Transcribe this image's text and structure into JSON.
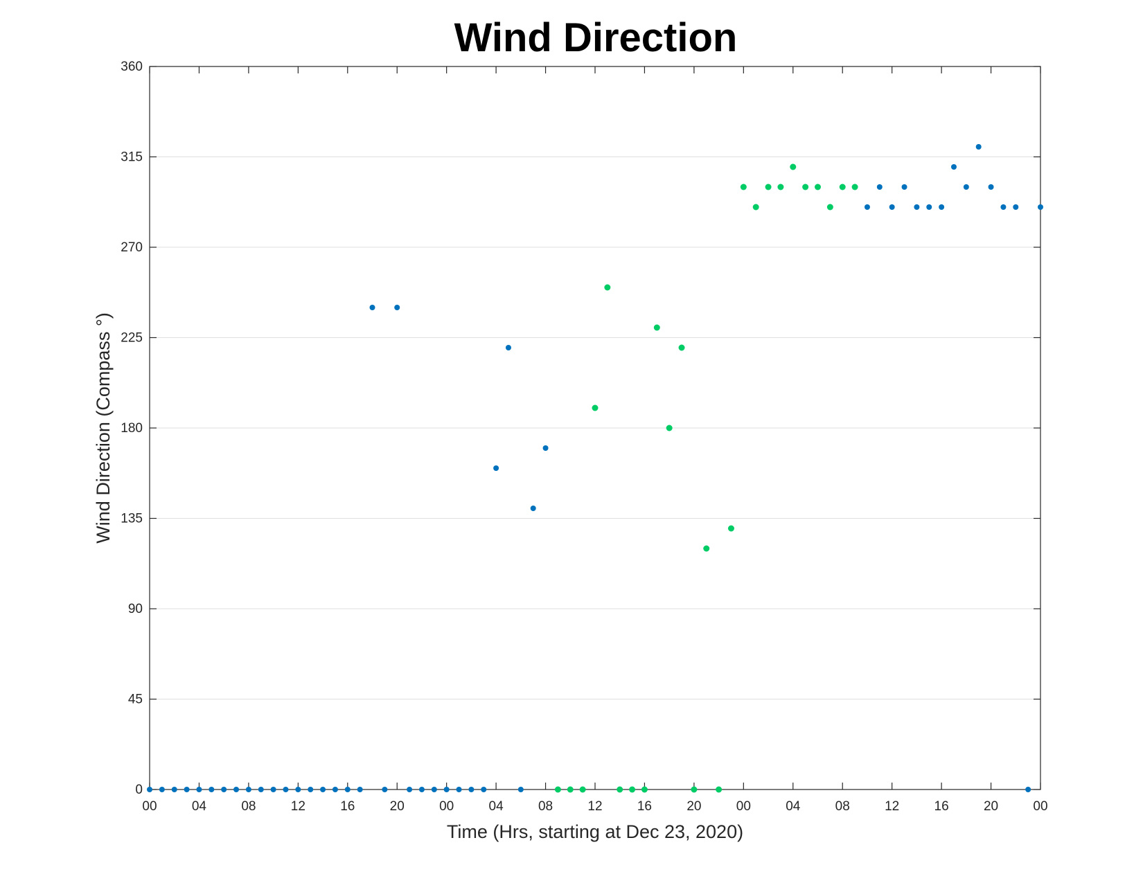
{
  "chart_data": {
    "type": "scatter",
    "title": "Wind Direction",
    "xlabel": "Time (Hrs, starting at Dec 23, 2020)",
    "ylabel": "Wind Direction (Compass °)",
    "x_unit": "hour",
    "xlim": [
      0,
      72
    ],
    "ylim": [
      0,
      360
    ],
    "yticks": [
      0,
      45,
      90,
      135,
      180,
      225,
      270,
      315,
      360
    ],
    "xticks": [
      {
        "x": 0,
        "label": "00"
      },
      {
        "x": 4,
        "label": "04"
      },
      {
        "x": 8,
        "label": "08"
      },
      {
        "x": 12,
        "label": "12"
      },
      {
        "x": 16,
        "label": "16"
      },
      {
        "x": 20,
        "label": "20"
      },
      {
        "x": 24,
        "label": "00"
      },
      {
        "x": 28,
        "label": "04"
      },
      {
        "x": 32,
        "label": "08"
      },
      {
        "x": 36,
        "label": "12"
      },
      {
        "x": 40,
        "label": "16"
      },
      {
        "x": 44,
        "label": "20"
      },
      {
        "x": 48,
        "label": "00"
      },
      {
        "x": 52,
        "label": "04"
      },
      {
        "x": 56,
        "label": "08"
      },
      {
        "x": 60,
        "label": "12"
      },
      {
        "x": 64,
        "label": "16"
      },
      {
        "x": 68,
        "label": "20"
      },
      {
        "x": 72,
        "label": "00"
      }
    ],
    "grid": "y",
    "series": [
      {
        "color": "#0072bd",
        "points": [
          {
            "x": 0,
            "y": 0
          },
          {
            "x": 1,
            "y": 0
          },
          {
            "x": 2,
            "y": 0
          },
          {
            "x": 3,
            "y": 0
          },
          {
            "x": 4,
            "y": 0
          },
          {
            "x": 5,
            "y": 0
          },
          {
            "x": 6,
            "y": 0
          },
          {
            "x": 7,
            "y": 0
          },
          {
            "x": 8,
            "y": 0
          },
          {
            "x": 9,
            "y": 0
          },
          {
            "x": 10,
            "y": 0
          },
          {
            "x": 11,
            "y": 0
          },
          {
            "x": 12,
            "y": 0
          },
          {
            "x": 13,
            "y": 0
          },
          {
            "x": 14,
            "y": 0
          },
          {
            "x": 15,
            "y": 0
          },
          {
            "x": 16,
            "y": 0
          },
          {
            "x": 17,
            "y": 0
          },
          {
            "x": 18,
            "y": 240
          },
          {
            "x": 19,
            "y": 0
          },
          {
            "x": 20,
            "y": 240
          },
          {
            "x": 21,
            "y": 0
          },
          {
            "x": 22,
            "y": 0
          },
          {
            "x": 23,
            "y": 0
          },
          {
            "x": 24,
            "y": 0
          },
          {
            "x": 25,
            "y": 0
          },
          {
            "x": 26,
            "y": 0
          },
          {
            "x": 27,
            "y": 0
          },
          {
            "x": 28,
            "y": 160
          },
          {
            "x": 29,
            "y": 220
          },
          {
            "x": 30,
            "y": 0
          },
          {
            "x": 31,
            "y": 140
          },
          {
            "x": 32,
            "y": 170
          },
          {
            "x": 58,
            "y": 290
          },
          {
            "x": 59,
            "y": 300
          },
          {
            "x": 60,
            "y": 290
          },
          {
            "x": 61,
            "y": 300
          },
          {
            "x": 62,
            "y": 290
          },
          {
            "x": 63,
            "y": 290
          },
          {
            "x": 64,
            "y": 290
          },
          {
            "x": 65,
            "y": 310
          },
          {
            "x": 66,
            "y": 300
          },
          {
            "x": 67,
            "y": 320
          },
          {
            "x": 68,
            "y": 300
          },
          {
            "x": 69,
            "y": 290
          },
          {
            "x": 70,
            "y": 290
          },
          {
            "x": 71,
            "y": 0
          },
          {
            "x": 72,
            "y": 290
          }
        ]
      },
      {
        "color": "#00cc66",
        "points": [
          {
            "x": 33,
            "y": 0
          },
          {
            "x": 34,
            "y": 0
          },
          {
            "x": 35,
            "y": 0
          },
          {
            "x": 36,
            "y": 190
          },
          {
            "x": 37,
            "y": 250
          },
          {
            "x": 38,
            "y": 0
          },
          {
            "x": 39,
            "y": 0
          },
          {
            "x": 40,
            "y": 0
          },
          {
            "x": 41,
            "y": 230
          },
          {
            "x": 42,
            "y": 180
          },
          {
            "x": 43,
            "y": 220
          },
          {
            "x": 44,
            "y": 0
          },
          {
            "x": 45,
            "y": 120
          },
          {
            "x": 46,
            "y": 0
          },
          {
            "x": 47,
            "y": 130
          },
          {
            "x": 48,
            "y": 300
          },
          {
            "x": 49,
            "y": 290
          },
          {
            "x": 50,
            "y": 300
          },
          {
            "x": 51,
            "y": 300
          },
          {
            "x": 52,
            "y": 310
          },
          {
            "x": 53,
            "y": 300
          },
          {
            "x": 54,
            "y": 300
          },
          {
            "x": 55,
            "y": 290
          },
          {
            "x": 56,
            "y": 300
          },
          {
            "x": 57,
            "y": 300
          }
        ]
      }
    ]
  }
}
